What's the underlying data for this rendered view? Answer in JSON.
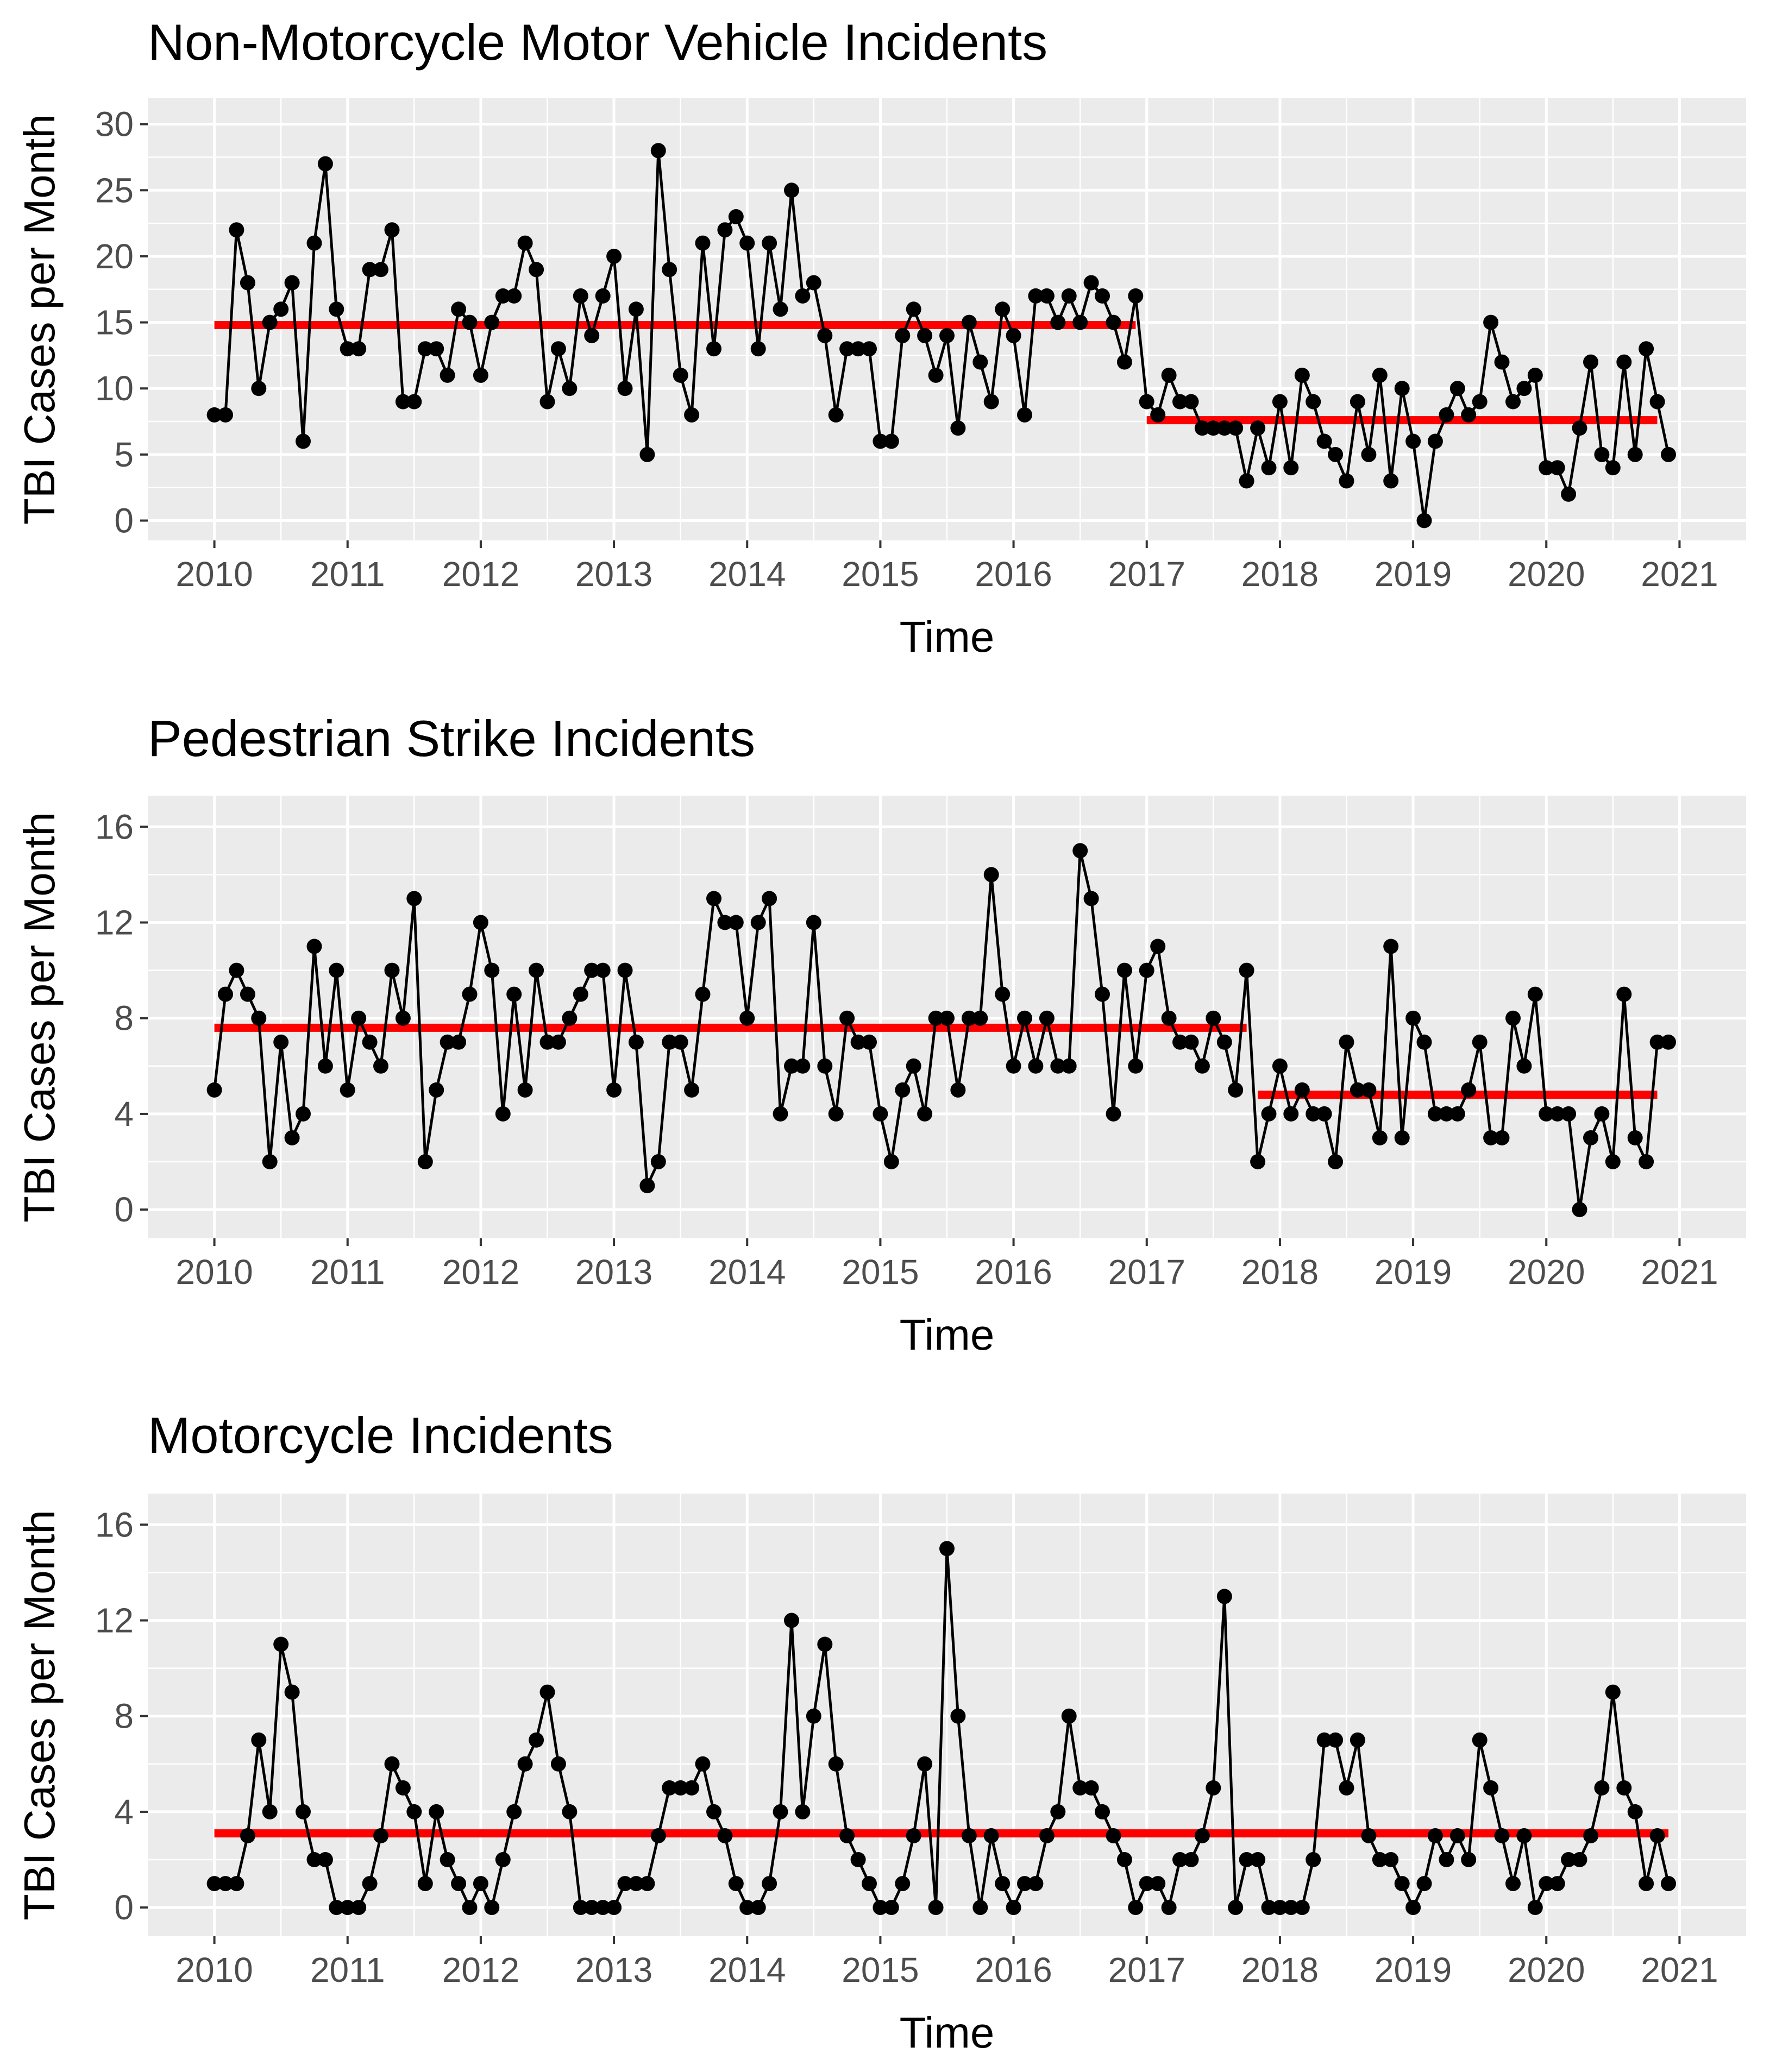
{
  "chart_data": [
    {
      "type": "line",
      "title": "Non-Motorcycle Motor Vehicle Incidents",
      "xlabel": "Time",
      "ylabel": "TBI Cases per Month",
      "xlim": [
        2009.5,
        2021.5
      ],
      "ylim": [
        -1.5,
        32
      ],
      "x_ticks": [
        2010,
        2011,
        2012,
        2013,
        2014,
        2015,
        2016,
        2017,
        2018,
        2019,
        2020,
        2021
      ],
      "x_tick_labels": [
        "2010",
        "2011",
        "2012",
        "2013",
        "2014",
        "2015",
        "2016",
        "2017",
        "2018",
        "2019",
        "2020",
        "2021"
      ],
      "y_ticks": [
        0,
        5,
        10,
        15,
        20,
        25,
        30
      ],
      "y_tick_labels": [
        "0",
        "5",
        "10",
        "15",
        "20",
        "25",
        "30"
      ],
      "x_start": 2010,
      "x_step": 0.0833333,
      "values": [
        8,
        8,
        22,
        18,
        10,
        15,
        16,
        18,
        6,
        21,
        27,
        16,
        13,
        13,
        19,
        19,
        22,
        9,
        9,
        13,
        13,
        11,
        16,
        15,
        11,
        15,
        17,
        17,
        21,
        19,
        9,
        13,
        10,
        17,
        14,
        17,
        20,
        10,
        16,
        5,
        28,
        19,
        11,
        8,
        21,
        13,
        22,
        23,
        21,
        13,
        21,
        16,
        25,
        17,
        18,
        14,
        8,
        13,
        13,
        13,
        6,
        6,
        14,
        16,
        14,
        11,
        14,
        7,
        15,
        12,
        9,
        16,
        14,
        8,
        17,
        17,
        15,
        17,
        15,
        18,
        17,
        15,
        12,
        17,
        9,
        8,
        11,
        9,
        9,
        7,
        7,
        7,
        7,
        3,
        7,
        4,
        9,
        4,
        11,
        9,
        6,
        5,
        3,
        9,
        5,
        11,
        3,
        10,
        6,
        0,
        6,
        8,
        10,
        8,
        9,
        15,
        12,
        9,
        10,
        11,
        4,
        4,
        2,
        7,
        12,
        5,
        4,
        12,
        5,
        13,
        9,
        5
      ],
      "segments": [
        {
          "x_from": 2010,
          "x_to": 2016.917,
          "y": 14.8,
          "color": "#ff0000"
        },
        {
          "x_from": 2017,
          "x_to": 2020.833,
          "y": 7.6,
          "color": "#ff0000"
        }
      ],
      "line_color": "#000000",
      "panel_color": "#ebebeb"
    },
    {
      "type": "line",
      "title": "Pedestrian Strike Incidents",
      "xlabel": "Time",
      "ylabel": "TBI Cases per Month",
      "xlim": [
        2009.5,
        2021.5
      ],
      "ylim": [
        -1.2,
        17.3
      ],
      "x_ticks": [
        2010,
        2011,
        2012,
        2013,
        2014,
        2015,
        2016,
        2017,
        2018,
        2019,
        2020,
        2021
      ],
      "x_tick_labels": [
        "2010",
        "2011",
        "2012",
        "2013",
        "2014",
        "2015",
        "2016",
        "2017",
        "2018",
        "2019",
        "2020",
        "2021"
      ],
      "y_ticks": [
        0,
        4,
        8,
        12,
        16
      ],
      "y_tick_labels": [
        "0",
        "4",
        "8",
        "12",
        "16"
      ],
      "x_start": 2010,
      "x_step": 0.0833333,
      "values": [
        5,
        9,
        10,
        9,
        8,
        2,
        7,
        3,
        4,
        11,
        6,
        10,
        5,
        8,
        7,
        6,
        10,
        8,
        13,
        2,
        5,
        7,
        7,
        9,
        12,
        10,
        4,
        9,
        5,
        10,
        7,
        7,
        8,
        9,
        10,
        10,
        5,
        10,
        7,
        1,
        2,
        7,
        7,
        5,
        9,
        13,
        12,
        12,
        8,
        12,
        13,
        4,
        6,
        6,
        12,
        6,
        4,
        8,
        7,
        7,
        4,
        2,
        5,
        6,
        4,
        8,
        8,
        5,
        8,
        8,
        14,
        9,
        6,
        8,
        6,
        8,
        6,
        6,
        15,
        13,
        9,
        4,
        10,
        6,
        10,
        11,
        8,
        7,
        7,
        6,
        8,
        7,
        5,
        10,
        2,
        4,
        6,
        4,
        5,
        4,
        4,
        2,
        7,
        5,
        5,
        3,
        11,
        3,
        8,
        7,
        4,
        4,
        4,
        5,
        7,
        3,
        3,
        8,
        6,
        9,
        4,
        4,
        4,
        0,
        3,
        4,
        2,
        9,
        3,
        2,
        7,
        7
      ],
      "segments": [
        {
          "x_from": 2010,
          "x_to": 2017.75,
          "y": 7.6,
          "color": "#ff0000"
        },
        {
          "x_from": 2017.833,
          "x_to": 2020.833,
          "y": 4.8,
          "color": "#ff0000"
        }
      ],
      "line_color": "#000000",
      "panel_color": "#ebebeb"
    },
    {
      "type": "line",
      "title": "Motorcycle Incidents",
      "xlabel": "Time",
      "ylabel": "TBI Cases per Month",
      "xlim": [
        2009.5,
        2021.5
      ],
      "ylim": [
        -1.2,
        17.3
      ],
      "x_ticks": [
        2010,
        2011,
        2012,
        2013,
        2014,
        2015,
        2016,
        2017,
        2018,
        2019,
        2020,
        2021
      ],
      "x_tick_labels": [
        "2010",
        "2011",
        "2012",
        "2013",
        "2014",
        "2015",
        "2016",
        "2017",
        "2018",
        "2019",
        "2020",
        "2021"
      ],
      "y_ticks": [
        0,
        4,
        8,
        12,
        16
      ],
      "y_tick_labels": [
        "0",
        "4",
        "8",
        "12",
        "16"
      ],
      "x_start": 2010,
      "x_step": 0.0833333,
      "values": [
        1,
        1,
        1,
        3,
        7,
        4,
        11,
        9,
        4,
        2,
        2,
        0,
        0,
        0,
        1,
        3,
        6,
        5,
        4,
        1,
        4,
        2,
        1,
        0,
        1,
        0,
        2,
        4,
        6,
        7,
        9,
        6,
        4,
        0,
        0,
        0,
        0,
        1,
        1,
        1,
        3,
        5,
        5,
        5,
        6,
        4,
        3,
        1,
        0,
        0,
        1,
        4,
        12,
        4,
        8,
        11,
        6,
        3,
        2,
        1,
        0,
        0,
        1,
        3,
        6,
        0,
        15,
        8,
        3,
        0,
        3,
        1,
        0,
        1,
        1,
        3,
        4,
        8,
        5,
        5,
        4,
        3,
        2,
        0,
        1,
        1,
        0,
        2,
        2,
        3,
        5,
        13,
        0,
        2,
        2,
        0,
        0,
        0,
        0,
        2,
        7,
        7,
        5,
        7,
        3,
        2,
        2,
        1,
        0,
        1,
        3,
        2,
        3,
        2,
        7,
        5,
        3,
        1,
        3,
        0,
        1,
        1,
        2,
        2,
        3,
        5,
        9,
        5,
        4,
        1,
        3,
        1
      ],
      "segments": [
        {
          "x_from": 2010,
          "x_to": 2020.917,
          "y": 3.1,
          "color": "#ff0000"
        }
      ],
      "line_color": "#000000",
      "panel_color": "#ebebeb"
    }
  ]
}
